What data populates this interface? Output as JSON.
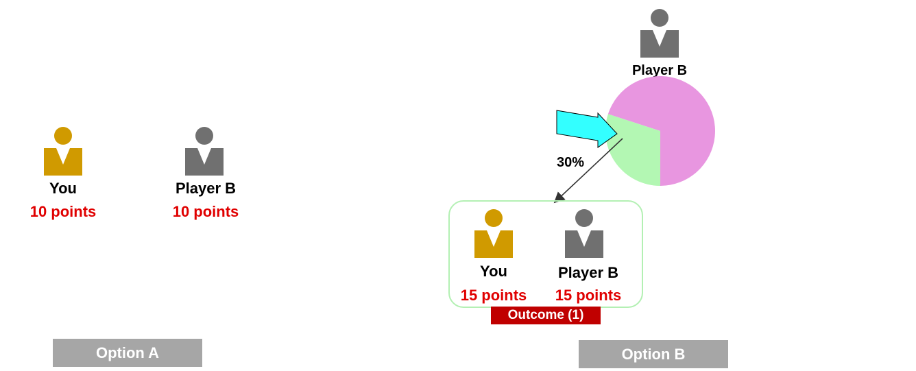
{
  "colors": {
    "you": "#d09a00",
    "player": "#707070",
    "points": "#e00000",
    "option_bg": "#a6a6a6",
    "outcome_bg": "#c00000",
    "outcome_border": "#b3f0b3",
    "arrow": "#33ffff",
    "pie_large": "#e896e0",
    "pie_small": "#b3f7b3"
  },
  "icons": {
    "you": "person-icon",
    "player": "person-icon",
    "pointer": "block-arrow-icon"
  },
  "option_a": {
    "you": {
      "name": "You",
      "points": "10 points"
    },
    "player_b": {
      "name": "Player B",
      "points": "10 points"
    },
    "button_label": "Option A"
  },
  "option_b": {
    "player_b_top": {
      "name": "Player B"
    },
    "chance": {
      "label": "30%",
      "fraction": 0.3
    },
    "outcome": {
      "you": {
        "name": "You",
        "points": "15 points"
      },
      "player_b": {
        "name": "Player B",
        "points": "15 points"
      },
      "label": "Outcome (1)"
    },
    "button_label": "Option B"
  }
}
